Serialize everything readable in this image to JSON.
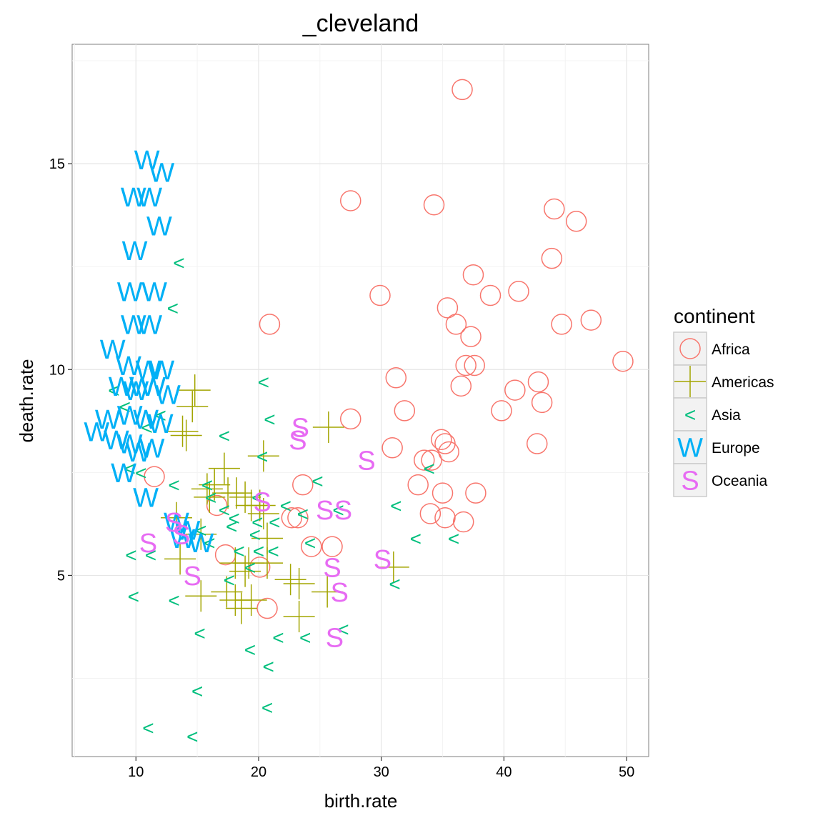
{
  "chart_data": {
    "type": "scatter",
    "title": "_cleveland",
    "xlabel": "birth.rate",
    "ylabel": "death.rate",
    "xlim": [
      4.8,
      51.8
    ],
    "ylim": [
      0.6,
      17.9
    ],
    "x_ticks": [
      10,
      20,
      30,
      40,
      50
    ],
    "y_ticks": [
      5,
      10,
      15
    ],
    "x_tick_labels": [
      "10",
      "20",
      "30",
      "40",
      "50"
    ],
    "y_tick_labels": [
      "5",
      "10",
      "15"
    ],
    "grid": true,
    "legend_position": "right",
    "legend_title": "continent",
    "series": [
      {
        "name": "Africa",
        "shape": "circle",
        "color": "#F8766D",
        "points": [
          [
            36.6,
            16.8
          ],
          [
            27.5,
            14.1
          ],
          [
            34.3,
            14.0
          ],
          [
            44.1,
            13.9
          ],
          [
            45.9,
            13.6
          ],
          [
            43.9,
            12.7
          ],
          [
            37.5,
            12.3
          ],
          [
            29.9,
            11.8
          ],
          [
            38.9,
            11.8
          ],
          [
            41.2,
            11.9
          ],
          [
            35.4,
            11.5
          ],
          [
            20.9,
            11.1
          ],
          [
            36.1,
            11.1
          ],
          [
            44.7,
            11.1
          ],
          [
            47.1,
            11.2
          ],
          [
            37.3,
            10.8
          ],
          [
            36.9,
            10.1
          ],
          [
            37.6,
            10.1
          ],
          [
            49.7,
            10.2
          ],
          [
            31.2,
            9.8
          ],
          [
            36.5,
            9.6
          ],
          [
            40.9,
            9.5
          ],
          [
            42.8,
            9.7
          ],
          [
            43.1,
            9.2
          ],
          [
            31.9,
            9.0
          ],
          [
            39.8,
            9.0
          ],
          [
            27.5,
            8.8
          ],
          [
            34.9,
            8.3
          ],
          [
            35.2,
            8.2
          ],
          [
            30.9,
            8.1
          ],
          [
            35.5,
            8.0
          ],
          [
            33.5,
            7.8
          ],
          [
            34.1,
            7.8
          ],
          [
            42.7,
            8.2
          ],
          [
            11.5,
            7.4
          ],
          [
            23.6,
            7.2
          ],
          [
            33.0,
            7.2
          ],
          [
            35.0,
            7.0
          ],
          [
            37.7,
            7.0
          ],
          [
            16.6,
            6.7
          ],
          [
            22.7,
            6.4
          ],
          [
            23.2,
            6.4
          ],
          [
            34.0,
            6.5
          ],
          [
            35.2,
            6.4
          ],
          [
            36.7,
            6.3
          ],
          [
            24.3,
            5.7
          ],
          [
            26.0,
            5.7
          ],
          [
            17.3,
            5.5
          ],
          [
            20.1,
            5.2
          ],
          [
            20.7,
            4.2
          ]
        ]
      },
      {
        "name": "Americas",
        "shape": "cross",
        "color": "#A3A500",
        "points": [
          [
            14.8,
            9.5
          ],
          [
            14.6,
            9.1
          ],
          [
            13.8,
            8.5
          ],
          [
            14.1,
            8.4
          ],
          [
            25.7,
            8.6
          ],
          [
            20.4,
            7.9
          ],
          [
            17.2,
            7.6
          ],
          [
            15.8,
            7.1
          ],
          [
            16.4,
            7.2
          ],
          [
            16.0,
            6.9
          ],
          [
            17.5,
            7.0
          ],
          [
            18.2,
            7.0
          ],
          [
            18.9,
            6.9
          ],
          [
            19.4,
            6.7
          ],
          [
            20.1,
            6.7
          ],
          [
            20.4,
            6.5
          ],
          [
            13.3,
            6.4
          ],
          [
            15.3,
            6.0
          ],
          [
            20.7,
            5.9
          ],
          [
            20.7,
            5.3
          ],
          [
            13.6,
            5.4
          ],
          [
            18.1,
            5.3
          ],
          [
            18.9,
            5.1
          ],
          [
            19.2,
            5.3
          ],
          [
            22.6,
            4.9
          ],
          [
            23.3,
            4.8
          ],
          [
            25.6,
            4.6
          ],
          [
            15.3,
            4.5
          ],
          [
            17.4,
            4.6
          ],
          [
            18.1,
            4.4
          ],
          [
            18.6,
            4.2
          ],
          [
            19.4,
            4.4
          ],
          [
            23.3,
            4.0
          ],
          [
            31.0,
            5.2
          ]
        ]
      },
      {
        "name": "Asia",
        "shape": "lt",
        "color": "#00BF7D",
        "points": [
          [
            13.5,
            12.6
          ],
          [
            13.0,
            11.5
          ],
          [
            20.4,
            9.7
          ],
          [
            8.2,
            9.5
          ],
          [
            9.1,
            9.1
          ],
          [
            12.0,
            8.9
          ],
          [
            20.9,
            8.8
          ],
          [
            10.9,
            8.6
          ],
          [
            17.2,
            8.4
          ],
          [
            20.3,
            7.9
          ],
          [
            9.5,
            7.6
          ],
          [
            10.4,
            7.5
          ],
          [
            33.9,
            7.6
          ],
          [
            24.8,
            7.3
          ],
          [
            13.1,
            7.2
          ],
          [
            15.8,
            7.2
          ],
          [
            16.1,
            6.9
          ],
          [
            19.9,
            6.9
          ],
          [
            31.2,
            6.7
          ],
          [
            17.2,
            6.6
          ],
          [
            22.2,
            6.7
          ],
          [
            26.5,
            6.6
          ],
          [
            18.0,
            6.4
          ],
          [
            19.9,
            6.3
          ],
          [
            21.3,
            6.3
          ],
          [
            23.6,
            6.5
          ],
          [
            17.8,
            6.2
          ],
          [
            19.7,
            6.0
          ],
          [
            15.3,
            6.1
          ],
          [
            16.0,
            5.8
          ],
          [
            24.2,
            5.8
          ],
          [
            32.8,
            5.9
          ],
          [
            35.9,
            5.9
          ],
          [
            20.0,
            5.6
          ],
          [
            21.2,
            5.6
          ],
          [
            18.4,
            5.6
          ],
          [
            9.6,
            5.5
          ],
          [
            11.2,
            5.5
          ],
          [
            19.3,
            5.2
          ],
          [
            17.6,
            4.9
          ],
          [
            31.1,
            4.8
          ],
          [
            9.8,
            4.5
          ],
          [
            13.1,
            4.4
          ],
          [
            15.2,
            3.6
          ],
          [
            21.6,
            3.5
          ],
          [
            23.8,
            3.5
          ],
          [
            26.9,
            3.7
          ],
          [
            19.3,
            3.2
          ],
          [
            20.8,
            2.8
          ],
          [
            15.0,
            2.2
          ],
          [
            20.7,
            1.8
          ],
          [
            11.0,
            1.3
          ],
          [
            14.6,
            1.1
          ]
        ]
      },
      {
        "name": "Europe",
        "shape": "W",
        "color": "#00B0F6",
        "points": [
          [
            10.9,
            15.1
          ],
          [
            12.1,
            14.8
          ],
          [
            9.8,
            14.2
          ],
          [
            11.1,
            14.2
          ],
          [
            11.9,
            13.5
          ],
          [
            9.9,
            12.9
          ],
          [
            9.5,
            11.9
          ],
          [
            11.5,
            11.9
          ],
          [
            9.8,
            11.1
          ],
          [
            11.1,
            11.1
          ],
          [
            8.1,
            10.5
          ],
          [
            9.4,
            10.1
          ],
          [
            11.0,
            10.0
          ],
          [
            12.1,
            10.0
          ],
          [
            8.8,
            9.6
          ],
          [
            10.0,
            9.5
          ],
          [
            10.5,
            9.6
          ],
          [
            11.4,
            9.6
          ],
          [
            12.6,
            9.4
          ],
          [
            7.7,
            8.8
          ],
          [
            9.5,
            8.9
          ],
          [
            10.8,
            8.8
          ],
          [
            12.0,
            8.7
          ],
          [
            6.8,
            8.5
          ],
          [
            8.4,
            8.3
          ],
          [
            9.5,
            8.2
          ],
          [
            11.3,
            8.1
          ],
          [
            10.2,
            8.0
          ],
          [
            9.0,
            7.5
          ],
          [
            10.8,
            6.9
          ],
          [
            13.3,
            6.3
          ],
          [
            14.2,
            6.1
          ],
          [
            13.8,
            5.9
          ],
          [
            15.3,
            5.8
          ]
        ]
      },
      {
        "name": "Oceania",
        "shape": "S",
        "color": "#E76BF3",
        "points": [
          [
            23.4,
            8.6
          ],
          [
            23.2,
            8.3
          ],
          [
            28.8,
            7.8
          ],
          [
            20.3,
            6.8
          ],
          [
            25.4,
            6.6
          ],
          [
            26.9,
            6.6
          ],
          [
            13.1,
            6.3
          ],
          [
            13.7,
            6.0
          ],
          [
            11.0,
            5.8
          ],
          [
            30.1,
            5.4
          ],
          [
            26.0,
            5.2
          ],
          [
            14.6,
            5.0
          ],
          [
            26.6,
            4.6
          ],
          [
            26.2,
            3.5
          ]
        ]
      }
    ]
  }
}
